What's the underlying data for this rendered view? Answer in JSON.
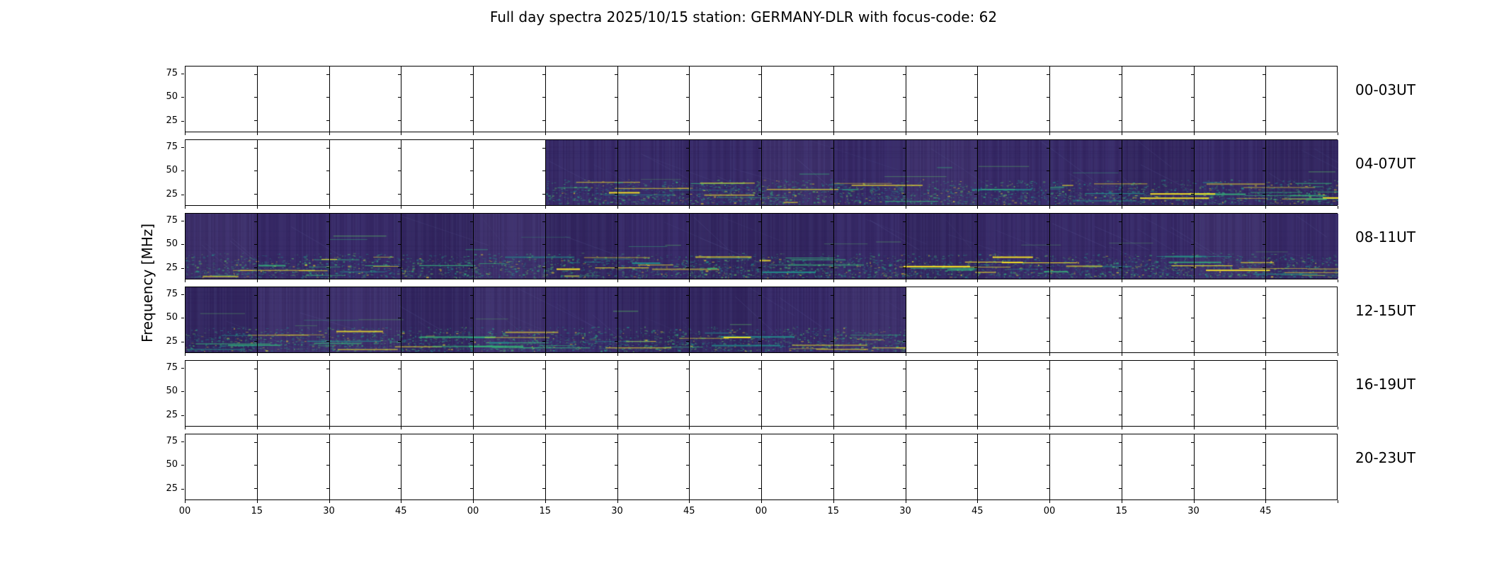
{
  "title": "Full day spectra 2025/10/15 station: GERMANY-DLR with focus-code: 62",
  "y_axis_label": "Frequency [MHz]",
  "chart_data": {
    "type": "heatmap",
    "subtype": "radio-spectrogram-grid",
    "colormap": "viridis",
    "station": "GERMANY-DLR",
    "date": "2025/10/15",
    "focus_code": "62",
    "segments_per_row": 16,
    "segment_minutes": 15,
    "x_tick_labels": [
      "00",
      "15",
      "30",
      "45",
      "00",
      "15",
      "30",
      "45",
      "00",
      "15",
      "30",
      "45",
      "00",
      "15",
      "30",
      "45"
    ],
    "y_ticks": [
      75,
      50,
      25
    ],
    "y_range_mhz": [
      13,
      83
    ],
    "rows": [
      {
        "label": "00-03UT",
        "data_start_segment": 0,
        "data_end_segment": 0
      },
      {
        "label": "04-07UT",
        "data_start_segment": 5,
        "data_end_segment": 16
      },
      {
        "label": "08-11UT",
        "data_start_segment": 0,
        "data_end_segment": 16
      },
      {
        "label": "12-15UT",
        "data_start_segment": 0,
        "data_end_segment": 10
      },
      {
        "label": "16-19UT",
        "data_start_segment": 0,
        "data_end_segment": 0
      },
      {
        "label": "20-23UT",
        "data_start_segment": 0,
        "data_end_segment": 0
      }
    ],
    "colors": {
      "background": "#392b68",
      "dark": "#271c4e",
      "blue": "#3e4989",
      "teal": "#21918c",
      "green": "#35b779",
      "bright_green": "#5ec962",
      "yellow": "#fde725"
    },
    "legend": "none",
    "grid": "segment dividers every 15 minutes"
  }
}
